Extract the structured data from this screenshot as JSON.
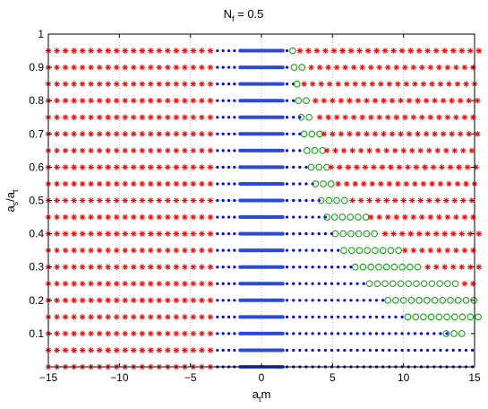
{
  "chart_data": {
    "type": "scatter",
    "title": {
      "base": "N",
      "sub": "f",
      "rest": " = 0.5"
    },
    "xlabel": {
      "base": "a",
      "sub": "t",
      "rest": "m"
    },
    "ylabel": {
      "base": "a",
      "sub": "s",
      "mid": "/a",
      "sub2": "t"
    },
    "xlim": [
      -15,
      15
    ],
    "ylim": [
      0,
      1
    ],
    "x_ticks": [
      "−15",
      "−10",
      "−5",
      "0",
      "5",
      "10",
      "15"
    ],
    "y_ticks": [
      "0.1",
      "0.2",
      "0.3",
      "0.4",
      "0.5",
      "0.6",
      "0.7",
      "0.8",
      "0.9",
      "1"
    ],
    "grid": true,
    "rows_y": [
      0.0,
      0.05,
      0.1,
      0.15,
      0.2,
      0.25,
      0.3,
      0.35,
      0.4,
      0.45,
      0.5,
      0.55,
      0.6,
      0.65,
      0.7,
      0.75,
      0.8,
      0.85,
      0.9,
      0.95
    ],
    "rows": [
      {
        "y": 0.0,
        "red_left": [
          -15,
          -3.4
        ],
        "blue_left": [
          -3.4,
          -1.5
        ],
        "dense": [
          -1.5,
          1.5
        ],
        "blue_right": [
          1.5,
          15
        ],
        "green": null,
        "red_right": null
      },
      {
        "y": 0.05,
        "red_left": [
          -15,
          -3.4
        ],
        "blue_left": [
          -3.4,
          -1.5
        ],
        "dense": [
          -1.5,
          1.5
        ],
        "blue_right": [
          1.5,
          15
        ],
        "green": null,
        "red_right": null
      },
      {
        "y": 0.1,
        "red_left": [
          -15,
          -3.4
        ],
        "blue_left": [
          -3.4,
          -1.5
        ],
        "dense": [
          -1.5,
          1.5
        ],
        "blue_right": [
          1.5,
          12.9
        ],
        "green": [
          13.0,
          14.2
        ],
        "red_right": null
      },
      {
        "y": 0.15,
        "red_left": [
          -15,
          -3.4
        ],
        "blue_left": [
          -3.4,
          -1.5
        ],
        "dense": [
          -1.5,
          1.5
        ],
        "blue_right": [
          1.5,
          10.0
        ],
        "green": [
          10.3,
          15.0
        ],
        "red_right": null
      },
      {
        "y": 0.2,
        "red_left": [
          -15,
          -3.4
        ],
        "blue_left": [
          -3.4,
          -1.5
        ],
        "dense": [
          -1.5,
          1.5
        ],
        "blue_right": [
          1.5,
          8.5
        ],
        "green": [
          8.9,
          15.0
        ],
        "red_right": null
      },
      {
        "y": 0.25,
        "red_left": [
          -15,
          -3.4
        ],
        "blue_left": [
          -3.4,
          -1.5
        ],
        "dense": [
          -1.5,
          1.5
        ],
        "blue_right": [
          1.5,
          7.3
        ],
        "green": [
          7.6,
          13.8
        ],
        "red_right": [
          14.3,
          15
        ]
      },
      {
        "y": 0.3,
        "red_left": [
          -15,
          -3.4
        ],
        "blue_left": [
          -3.4,
          -1.5
        ],
        "dense": [
          -1.5,
          1.5
        ],
        "blue_right": [
          1.5,
          6.3
        ],
        "green": [
          6.6,
          11.2
        ],
        "red_right": [
          11.7,
          15
        ]
      },
      {
        "y": 0.35,
        "red_left": [
          -15,
          -3.4
        ],
        "blue_left": [
          -3.4,
          -1.5
        ],
        "dense": [
          -1.5,
          1.5
        ],
        "blue_right": [
          1.5,
          5.5
        ],
        "green": [
          5.8,
          9.6
        ],
        "red_right": [
          10.1,
          15
        ]
      },
      {
        "y": 0.4,
        "red_left": [
          -15,
          -3.4
        ],
        "blue_left": [
          -3.4,
          -1.5
        ],
        "dense": [
          -1.5,
          1.5
        ],
        "blue_right": [
          1.5,
          4.9
        ],
        "green": [
          5.2,
          8.2
        ],
        "red_right": [
          8.7,
          15
        ]
      },
      {
        "y": 0.45,
        "red_left": [
          -15,
          -3.4
        ],
        "blue_left": [
          -3.4,
          -1.5
        ],
        "dense": [
          -1.5,
          1.5
        ],
        "blue_right": [
          1.5,
          4.3
        ],
        "green": [
          4.6,
          7.2
        ],
        "red_right": [
          7.7,
          15
        ]
      },
      {
        "y": 0.5,
        "red_left": [
          -15,
          -3.4
        ],
        "blue_left": [
          -3.4,
          -1.5
        ],
        "dense": [
          -1.5,
          1.5
        ],
        "blue_right": [
          1.5,
          3.9
        ],
        "green": [
          4.2,
          5.9
        ],
        "red_right": [
          6.4,
          15
        ]
      },
      {
        "y": 0.55,
        "red_left": [
          -15,
          -3.4
        ],
        "blue_left": [
          -3.4,
          -1.5
        ],
        "dense": [
          -1.5,
          1.5
        ],
        "blue_right": [
          1.5,
          3.5
        ],
        "green": [
          3.8,
          4.9
        ],
        "red_right": [
          5.4,
          15
        ]
      },
      {
        "y": 0.6,
        "red_left": [
          -15,
          -3.4
        ],
        "blue_left": [
          -3.4,
          -1.5
        ],
        "dense": [
          -1.5,
          1.5
        ],
        "blue_right": [
          1.5,
          3.2
        ],
        "green": [
          3.5,
          4.4
        ],
        "red_right": [
          4.9,
          15
        ]
      },
      {
        "y": 0.65,
        "red_left": [
          -15,
          -3.4
        ],
        "blue_left": [
          -3.4,
          -1.5
        ],
        "dense": [
          -1.5,
          1.5
        ],
        "blue_right": [
          1.5,
          2.9
        ],
        "green": [
          3.2,
          4.1
        ],
        "red_right": [
          4.6,
          15
        ]
      },
      {
        "y": 0.7,
        "red_left": [
          -15,
          -3.4
        ],
        "blue_left": [
          -3.4,
          -1.5
        ],
        "dense": [
          -1.5,
          1.5
        ],
        "blue_right": [
          1.5,
          2.7
        ],
        "green": [
          3.0,
          3.9
        ],
        "red_right": [
          4.4,
          15
        ]
      },
      {
        "y": 0.75,
        "red_left": [
          -15,
          -3.4
        ],
        "blue_left": [
          -3.4,
          -1.5
        ],
        "dense": [
          -1.5,
          1.5
        ],
        "blue_right": [
          1.5,
          2.5
        ],
        "green": [
          2.8,
          3.6
        ],
        "red_right": [
          4.1,
          15
        ]
      },
      {
        "y": 0.8,
        "red_left": [
          -15,
          -3.4
        ],
        "blue_left": [
          -3.4,
          -1.5
        ],
        "dense": [
          -1.5,
          1.5
        ],
        "blue_right": [
          1.5,
          2.3
        ],
        "green": [
          2.6,
          3.3
        ],
        "red_right": [
          3.8,
          15
        ]
      },
      {
        "y": 0.85,
        "red_left": [
          -15,
          -3.4
        ],
        "blue_left": [
          -3.4,
          -1.5
        ],
        "dense": [
          -1.5,
          1.5
        ],
        "blue_right": [
          1.5,
          2.2
        ],
        "green": [
          2.5,
          2.5
        ],
        "red_right": [
          3.0,
          15
        ]
      },
      {
        "y": 0.9,
        "red_left": [
          -15,
          -3.4
        ],
        "blue_left": [
          -3.4,
          -1.5
        ],
        "dense": [
          -1.5,
          1.5
        ],
        "blue_right": [
          1.5,
          2.0
        ],
        "green": [
          2.3,
          3.0
        ],
        "red_right": [
          3.5,
          15
        ]
      },
      {
        "y": 0.95,
        "red_left": [
          -15,
          -3.4
        ],
        "blue_left": [
          -3.4,
          -1.5
        ],
        "dense": [
          -1.5,
          1.5
        ],
        "blue_right": [
          1.5,
          1.9
        ],
        "green": [
          2.2,
          2.2
        ],
        "red_right": [
          2.7,
          15
        ]
      }
    ],
    "colors": {
      "red": "#ff0000",
      "blue": "#0000ff",
      "dense_blue": "#2a4bd7",
      "green": "#00a000",
      "grid": "#bfbfbf"
    }
  }
}
